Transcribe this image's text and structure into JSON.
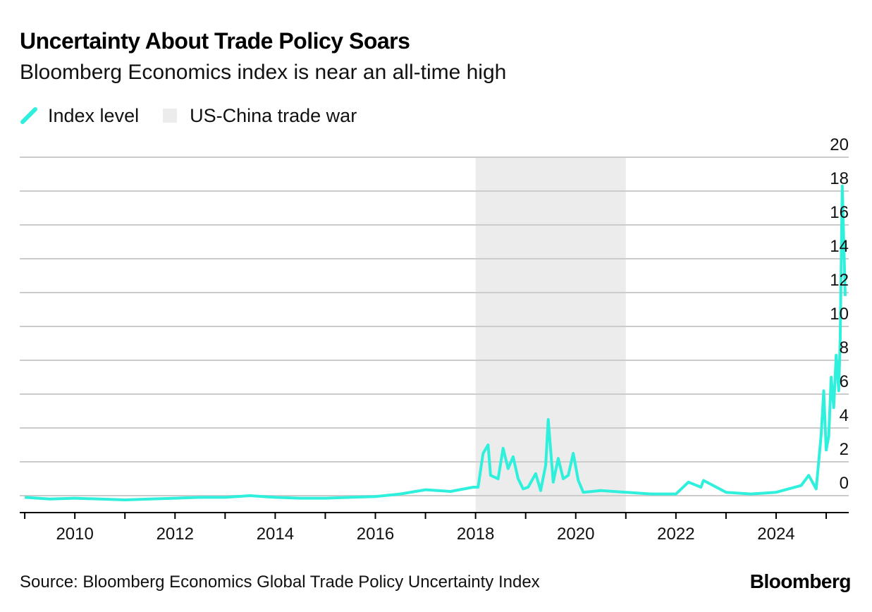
{
  "chart_data": {
    "type": "line",
    "title": "Uncertainty About Trade Policy Soars",
    "subtitle": "Bloomberg Economics index is near an all-time high",
    "xlabel": "",
    "ylabel": "",
    "xlim": [
      2008.9,
      2025.45
    ],
    "ylim": [
      -1,
      20
    ],
    "y_axis_position": "right",
    "y_ticks": [
      0,
      2,
      4,
      6,
      8,
      10,
      12,
      14,
      16,
      18,
      20
    ],
    "x_ticks": [
      2010,
      2012,
      2014,
      2016,
      2018,
      2020,
      2022,
      2024
    ],
    "grid": "horizontal",
    "legend_placement": "top-left",
    "series": [
      {
        "name": "Index level",
        "color": "#2ef0dc",
        "points": [
          [
            2009.0,
            -0.1
          ],
          [
            2009.5,
            -0.2
          ],
          [
            2010.0,
            -0.15
          ],
          [
            2010.5,
            -0.2
          ],
          [
            2011.0,
            -0.25
          ],
          [
            2011.5,
            -0.2
          ],
          [
            2012.0,
            -0.15
          ],
          [
            2012.5,
            -0.1
          ],
          [
            2013.0,
            -0.1
          ],
          [
            2013.5,
            0.0
          ],
          [
            2014.0,
            -0.1
          ],
          [
            2014.5,
            -0.15
          ],
          [
            2015.0,
            -0.15
          ],
          [
            2015.5,
            -0.1
          ],
          [
            2016.0,
            -0.05
          ],
          [
            2016.5,
            0.1
          ],
          [
            2017.0,
            0.35
          ],
          [
            2017.5,
            0.25
          ],
          [
            2017.95,
            0.5
          ],
          [
            2018.05,
            0.5
          ],
          [
            2018.15,
            2.5
          ],
          [
            2018.25,
            3.0
          ],
          [
            2018.3,
            1.2
          ],
          [
            2018.45,
            1.0
          ],
          [
            2018.55,
            2.8
          ],
          [
            2018.65,
            1.6
          ],
          [
            2018.75,
            2.3
          ],
          [
            2018.85,
            1.0
          ],
          [
            2018.95,
            0.4
          ],
          [
            2019.05,
            0.5
          ],
          [
            2019.2,
            1.3
          ],
          [
            2019.3,
            0.3
          ],
          [
            2019.4,
            1.8
          ],
          [
            2019.45,
            4.5
          ],
          [
            2019.55,
            0.8
          ],
          [
            2019.65,
            2.2
          ],
          [
            2019.75,
            1.0
          ],
          [
            2019.85,
            1.2
          ],
          [
            2019.95,
            2.5
          ],
          [
            2020.05,
            0.9
          ],
          [
            2020.15,
            0.2
          ],
          [
            2020.5,
            0.3
          ],
          [
            2021.0,
            0.2
          ],
          [
            2021.5,
            0.1
          ],
          [
            2022.0,
            0.1
          ],
          [
            2022.25,
            0.8
          ],
          [
            2022.5,
            0.5
          ],
          [
            2022.55,
            0.9
          ],
          [
            2023.0,
            0.2
          ],
          [
            2023.5,
            0.1
          ],
          [
            2024.0,
            0.2
          ],
          [
            2024.5,
            0.6
          ],
          [
            2024.65,
            1.2
          ],
          [
            2024.8,
            0.4
          ],
          [
            2024.9,
            3.6
          ],
          [
            2024.95,
            6.2
          ],
          [
            2025.0,
            2.7
          ],
          [
            2025.05,
            3.5
          ],
          [
            2025.1,
            7.0
          ],
          [
            2025.15,
            5.2
          ],
          [
            2025.2,
            8.3
          ],
          [
            2025.25,
            6.2
          ],
          [
            2025.28,
            9.3
          ],
          [
            2025.32,
            18.3
          ],
          [
            2025.38,
            11.8
          ]
        ]
      }
    ],
    "shaded_regions": [
      {
        "name": "US-China trade war",
        "from": 2018.0,
        "to": 2021.0,
        "color": "#ececec"
      }
    ]
  },
  "footer": {
    "source": "Source: Bloomberg Economics Global Trade Policy Uncertainty Index",
    "brand": "Bloomberg"
  },
  "colors": {
    "line": "#2ef0dc",
    "shade": "#ececec",
    "grid": "#cccccc",
    "axis": "#000000"
  }
}
